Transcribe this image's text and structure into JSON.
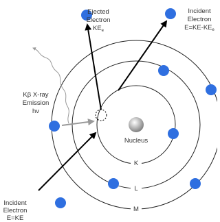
{
  "ejected_electron": {
    "lines": [
      "Ejected",
      "Electron"
    ],
    "energy": "KE",
    "energy_subscript": "e"
  },
  "scattered_electron": {
    "lines": [
      "Incident",
      "Electron"
    ],
    "energy": "E=KE-KE",
    "energy_subscript": "e"
  },
  "emission": {
    "lines": [
      "Kβ X-ray",
      "Emission",
      "hν"
    ]
  },
  "nucleus": "Nucleus",
  "shells": [
    "K",
    "L",
    "M"
  ],
  "incident_electron": {
    "lines": [
      "Incident",
      "Electron",
      "E=KE"
    ]
  }
}
